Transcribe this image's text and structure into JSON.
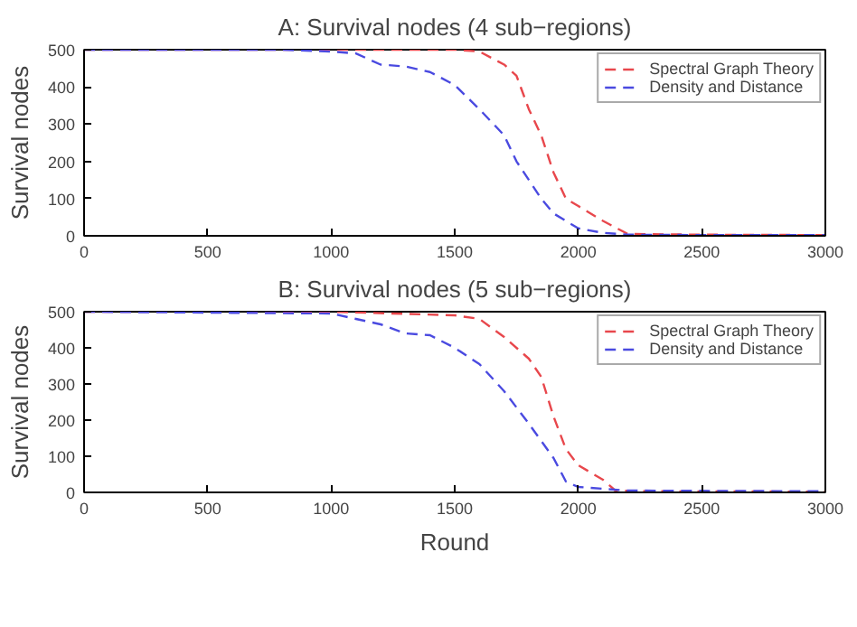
{
  "chart_data": [
    {
      "type": "line",
      "title": "A: Survival nodes (4 sub−regions)",
      "ylabel": "Survival nodes",
      "xlim": [
        0,
        3000
      ],
      "ylim": [
        0,
        500
      ],
      "xticks": [
        0,
        500,
        1000,
        1500,
        2000,
        2500,
        3000
      ],
      "yticks": [
        0,
        100,
        200,
        300,
        400,
        500
      ],
      "grid": false,
      "legend": "top right",
      "line_style": "dashed",
      "series": [
        {
          "name": "Spectral Graph Theory",
          "color": "#e8474c",
          "x": [
            0,
            1000,
            1500,
            1600,
            1700,
            1750,
            1800,
            1850,
            1900,
            1950,
            2000,
            2100,
            2200,
            2500,
            3000
          ],
          "values": [
            500,
            500,
            500,
            495,
            460,
            430,
            340,
            270,
            170,
            100,
            80,
            40,
            5,
            3,
            2
          ]
        },
        {
          "name": "Density and Distance",
          "color": "#4a4ae0",
          "x": [
            0,
            800,
            1000,
            1100,
            1200,
            1300,
            1400,
            1500,
            1600,
            1700,
            1750,
            1800,
            1850,
            1900,
            2000,
            2100,
            2200,
            2500,
            3000
          ],
          "values": [
            500,
            500,
            495,
            490,
            460,
            455,
            440,
            405,
            340,
            270,
            200,
            150,
            100,
            60,
            20,
            8,
            3,
            2,
            2
          ]
        }
      ]
    },
    {
      "type": "line",
      "title": "B: Survival nodes (5 sub−regions)",
      "xlabel": "Round",
      "ylabel": "Survival nodes",
      "xlim": [
        0,
        3000
      ],
      "ylim": [
        0,
        500
      ],
      "xticks": [
        0,
        500,
        1000,
        1500,
        2000,
        2500,
        3000
      ],
      "yticks": [
        0,
        100,
        200,
        300,
        400,
        500
      ],
      "grid": false,
      "legend": "top right",
      "line_style": "dashed",
      "series": [
        {
          "name": "Spectral Graph Theory",
          "color": "#e8474c",
          "x": [
            0,
            1000,
            1500,
            1600,
            1700,
            1800,
            1850,
            1900,
            1950,
            2000,
            2100,
            2150,
            2300,
            3000
          ],
          "values": [
            500,
            500,
            490,
            480,
            430,
            370,
            320,
            210,
            120,
            75,
            35,
            5,
            3,
            2
          ]
        },
        {
          "name": "Density and Distance",
          "color": "#4a4ae0",
          "x": [
            0,
            1000,
            1100,
            1200,
            1300,
            1400,
            1500,
            1600,
            1700,
            1800,
            1900,
            1950,
            2000,
            2100,
            2200,
            3000
          ],
          "values": [
            500,
            495,
            480,
            465,
            440,
            435,
            400,
            355,
            280,
            190,
            95,
            30,
            15,
            10,
            5,
            3
          ]
        }
      ]
    }
  ]
}
